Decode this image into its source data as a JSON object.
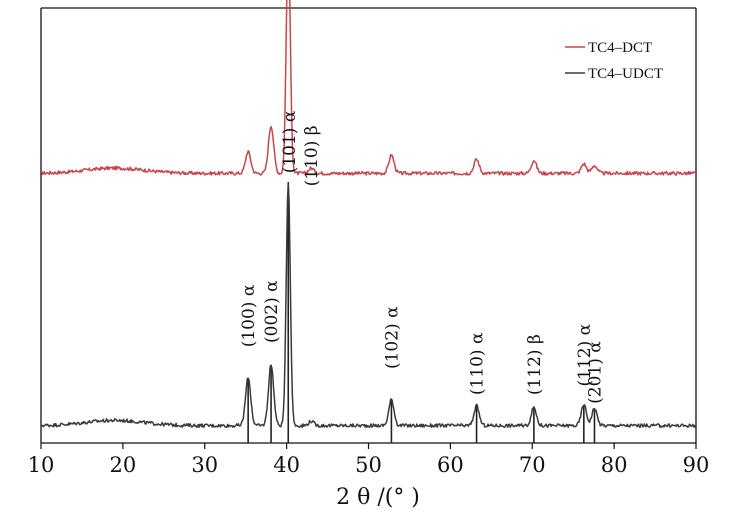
{
  "chart_data": {
    "type": "line",
    "title": "",
    "xlabel": "2 θ /(°  )",
    "ylabel": "",
    "xlim": [
      10,
      90
    ],
    "xticks": [
      10,
      20,
      30,
      40,
      50,
      60,
      70,
      80,
      90
    ],
    "y_tick_labels_shown": false,
    "grid": false,
    "legend": {
      "placement": "top-right"
    },
    "series": [
      {
        "name": "TC4–DCT",
        "color": "#c8464c",
        "baseline": 0.62,
        "peaks": [
          {
            "x": 35.3,
            "h": 0.05
          },
          {
            "x": 38.1,
            "h": 0.11
          },
          {
            "x": 40.2,
            "h": 0.53
          },
          {
            "x": 43.0,
            "h": 0.012
          },
          {
            "x": 52.8,
            "h": 0.042
          },
          {
            "x": 63.2,
            "h": 0.032
          },
          {
            "x": 70.2,
            "h": 0.03
          },
          {
            "x": 76.3,
            "h": 0.022
          },
          {
            "x": 77.6,
            "h": 0.018
          }
        ]
      },
      {
        "name": "TC4–UDCT",
        "color": "#3a3a3a",
        "baseline": 0.04,
        "peaks": [
          {
            "x": 35.3,
            "h": 0.11
          },
          {
            "x": 38.1,
            "h": 0.14
          },
          {
            "x": 40.2,
            "h": 0.56
          },
          {
            "x": 43.0,
            "h": 0.01
          },
          {
            "x": 52.8,
            "h": 0.06
          },
          {
            "x": 63.2,
            "h": 0.045
          },
          {
            "x": 70.2,
            "h": 0.042
          },
          {
            "x": 76.3,
            "h": 0.048
          },
          {
            "x": 77.6,
            "h": 0.04
          }
        ]
      }
    ],
    "peak_labels": [
      {
        "x": 35.3,
        "y": 0.22,
        "text": "(100) α"
      },
      {
        "x": 38.1,
        "y": 0.23,
        "text": "(002) α"
      },
      {
        "x": 40.3,
        "y": 0.62,
        "text": "(101) α"
      },
      {
        "x": 43.0,
        "y": 0.59,
        "text": "(110) β"
      },
      {
        "x": 52.8,
        "y": 0.17,
        "text": "(102) α"
      },
      {
        "x": 63.2,
        "y": 0.11,
        "text": "(110) α"
      },
      {
        "x": 70.2,
        "y": 0.11,
        "text": "(112) β"
      },
      {
        "x": 76.3,
        "y": 0.13,
        "text": "(112) α"
      },
      {
        "x": 77.6,
        "y": 0.09,
        "text": "(201) α"
      }
    ],
    "reference_lines_x": [
      35.3,
      38.1,
      40.2,
      52.8,
      63.2,
      70.2,
      76.3,
      77.6
    ]
  }
}
